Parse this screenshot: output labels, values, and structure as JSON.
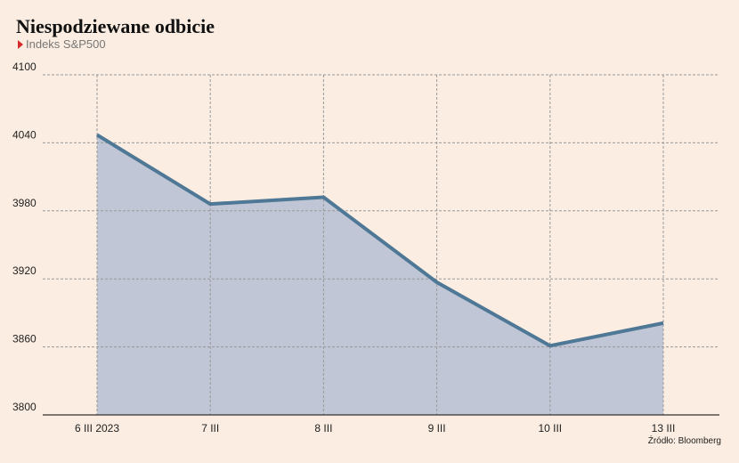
{
  "chart_data": {
    "type": "area",
    "title": "Niespodziewane odbicie",
    "subtitle": "Indeks S&P500",
    "source": "Źródło: Bloomberg",
    "categories": [
      "6 III 2023",
      "7 III",
      "8 III",
      "9 III",
      "10 III",
      "13 III"
    ],
    "series": [
      {
        "name": "S&P500",
        "color": "#4e7895",
        "fill": "#c0c6d6",
        "values": [
          4047,
          3986,
          3992,
          3917,
          3861,
          3881
        ]
      }
    ],
    "ylim": [
      3800,
      4100
    ],
    "yticks": [
      3800,
      3860,
      3920,
      3980,
      4040,
      4100
    ],
    "grid": true
  }
}
